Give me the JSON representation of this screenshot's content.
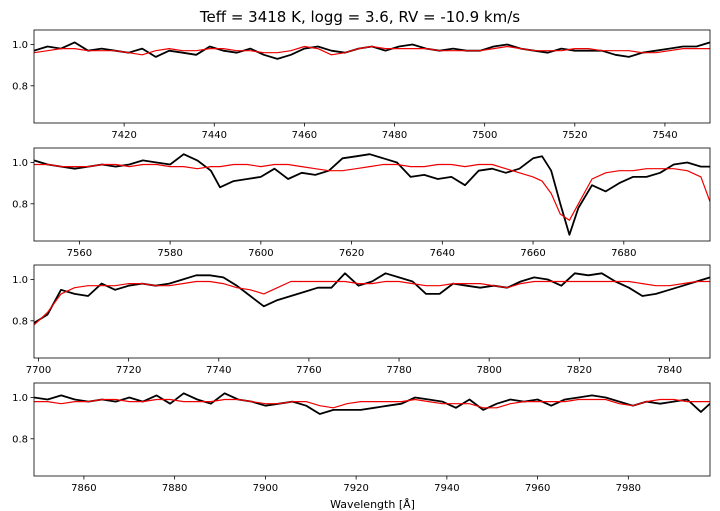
{
  "title": "Teff = 3418 K, logg = 3.6, RV = -10.9 km/s",
  "xlabel": "Wavelength [Å]",
  "colors": {
    "observed": "#000000",
    "model": "#ee0000",
    "axes": "#000000"
  },
  "chart_data": [
    {
      "type": "line",
      "xlim": [
        7400,
        7550
      ],
      "ylim": [
        0.62,
        1.07
      ],
      "xticks": [
        "7420",
        "7440",
        "7460",
        "7480",
        "7500",
        "7520",
        "7540"
      ],
      "yticks": [
        "0.8",
        "1.0"
      ],
      "series": [
        {
          "role": "observed",
          "x": [
            7400,
            7403,
            7406,
            7409,
            7412,
            7415,
            7418,
            7421,
            7424,
            7427,
            7430,
            7433,
            7436,
            7439,
            7442,
            7445,
            7448,
            7451,
            7454,
            7457,
            7460,
            7463,
            7466,
            7469,
            7472,
            7475,
            7478,
            7481,
            7484,
            7487,
            7490,
            7493,
            7496,
            7499,
            7502,
            7505,
            7508,
            7511,
            7514,
            7517,
            7520,
            7523,
            7526,
            7529,
            7532,
            7535,
            7538,
            7541,
            7544,
            7547,
            7550
          ],
          "y": [
            0.97,
            0.99,
            0.98,
            1.01,
            0.97,
            0.98,
            0.97,
            0.96,
            0.98,
            0.94,
            0.97,
            0.96,
            0.95,
            0.99,
            0.97,
            0.96,
            0.98,
            0.95,
            0.93,
            0.95,
            0.98,
            0.99,
            0.97,
            0.96,
            0.98,
            0.99,
            0.97,
            0.99,
            1.0,
            0.98,
            0.97,
            0.98,
            0.97,
            0.97,
            0.99,
            1.0,
            0.98,
            0.97,
            0.96,
            0.98,
            0.97,
            0.97,
            0.97,
            0.95,
            0.94,
            0.96,
            0.97,
            0.98,
            0.99,
            0.99,
            1.01
          ]
        },
        {
          "role": "model",
          "x": [
            7400,
            7403,
            7406,
            7409,
            7412,
            7415,
            7418,
            7421,
            7424,
            7427,
            7430,
            7433,
            7436,
            7439,
            7442,
            7445,
            7448,
            7451,
            7454,
            7457,
            7460,
            7463,
            7466,
            7469,
            7472,
            7475,
            7478,
            7481,
            7484,
            7487,
            7490,
            7493,
            7496,
            7499,
            7502,
            7505,
            7508,
            7511,
            7514,
            7517,
            7520,
            7523,
            7526,
            7529,
            7532,
            7535,
            7538,
            7541,
            7544,
            7547,
            7550
          ],
          "y": [
            0.96,
            0.97,
            0.98,
            0.98,
            0.97,
            0.97,
            0.97,
            0.96,
            0.95,
            0.97,
            0.98,
            0.97,
            0.97,
            0.98,
            0.98,
            0.97,
            0.97,
            0.96,
            0.96,
            0.97,
            0.99,
            0.98,
            0.95,
            0.96,
            0.98,
            0.99,
            0.98,
            0.98,
            0.98,
            0.98,
            0.97,
            0.97,
            0.97,
            0.97,
            0.98,
            0.99,
            0.98,
            0.97,
            0.97,
            0.97,
            0.98,
            0.98,
            0.97,
            0.97,
            0.97,
            0.96,
            0.96,
            0.97,
            0.98,
            0.98,
            0.98
          ]
        }
      ]
    },
    {
      "type": "line",
      "xlim": [
        7550,
        7699
      ],
      "ylim": [
        0.62,
        1.07
      ],
      "xticks": [
        "7560",
        "7580",
        "7600",
        "7620",
        "7640",
        "7660",
        "7680"
      ],
      "yticks": [
        "0.8",
        "1.0"
      ],
      "series": [
        {
          "role": "observed",
          "x": [
            7550,
            7553,
            7556,
            7559,
            7562,
            7565,
            7568,
            7571,
            7574,
            7577,
            7580,
            7583,
            7586,
            7589,
            7591,
            7594,
            7597,
            7600,
            7603,
            7606,
            7609,
            7612,
            7615,
            7618,
            7621,
            7624,
            7627,
            7630,
            7633,
            7636,
            7639,
            7642,
            7645,
            7648,
            7651,
            7654,
            7657,
            7660,
            7662,
            7664,
            7666,
            7668,
            7670,
            7673,
            7676,
            7679,
            7682,
            7685,
            7688,
            7691,
            7694,
            7697,
            7699
          ],
          "y": [
            1.01,
            0.99,
            0.98,
            0.97,
            0.98,
            0.99,
            0.98,
            0.99,
            1.01,
            1.0,
            0.99,
            1.04,
            1.01,
            0.96,
            0.88,
            0.91,
            0.92,
            0.93,
            0.97,
            0.92,
            0.95,
            0.94,
            0.96,
            1.02,
            1.03,
            1.04,
            1.02,
            1.0,
            0.93,
            0.94,
            0.92,
            0.93,
            0.89,
            0.96,
            0.97,
            0.95,
            0.97,
            1.02,
            1.03,
            0.96,
            0.8,
            0.65,
            0.78,
            0.89,
            0.86,
            0.9,
            0.93,
            0.93,
            0.95,
            0.99,
            1.0,
            0.98,
            0.98
          ]
        },
        {
          "role": "model",
          "x": [
            7550,
            7553,
            7556,
            7559,
            7562,
            7565,
            7568,
            7571,
            7574,
            7577,
            7580,
            7583,
            7586,
            7589,
            7591,
            7594,
            7597,
            7600,
            7603,
            7606,
            7609,
            7612,
            7615,
            7618,
            7621,
            7624,
            7627,
            7630,
            7633,
            7636,
            7639,
            7642,
            7645,
            7648,
            7651,
            7654,
            7657,
            7660,
            7662,
            7664,
            7666,
            7668,
            7670,
            7673,
            7676,
            7679,
            7682,
            7685,
            7688,
            7691,
            7694,
            7697,
            7699
          ],
          "y": [
            0.99,
            0.99,
            0.98,
            0.98,
            0.98,
            0.99,
            0.99,
            0.98,
            0.99,
            0.99,
            0.98,
            0.98,
            0.97,
            0.98,
            0.98,
            0.99,
            0.99,
            0.98,
            0.99,
            0.99,
            0.98,
            0.97,
            0.96,
            0.96,
            0.97,
            0.98,
            0.99,
            0.99,
            0.98,
            0.98,
            0.99,
            0.99,
            0.98,
            0.99,
            0.99,
            0.97,
            0.95,
            0.93,
            0.91,
            0.85,
            0.75,
            0.72,
            0.8,
            0.92,
            0.95,
            0.96,
            0.96,
            0.97,
            0.97,
            0.97,
            0.96,
            0.93,
            0.81
          ]
        }
      ]
    },
    {
      "type": "line",
      "xlim": [
        7699,
        7849
      ],
      "ylim": [
        0.62,
        1.07
      ],
      "xticks": [
        "7700",
        "7720",
        "7740",
        "7760",
        "7780",
        "7800",
        "7820",
        "7840"
      ],
      "yticks": [
        "0.8",
        "1.0"
      ],
      "series": [
        {
          "role": "observed",
          "x": [
            7699,
            7702,
            7705,
            7708,
            7711,
            7714,
            7717,
            7720,
            7723,
            7726,
            7729,
            7732,
            7735,
            7738,
            7741,
            7744,
            7747,
            7750,
            7753,
            7756,
            7759,
            7762,
            7765,
            7768,
            7771,
            7774,
            7777,
            7780,
            7783,
            7786,
            7789,
            7792,
            7795,
            7798,
            7801,
            7804,
            7807,
            7810,
            7813,
            7816,
            7819,
            7822,
            7825,
            7828,
            7831,
            7834,
            7837,
            7840,
            7843,
            7846,
            7849
          ],
          "y": [
            0.79,
            0.83,
            0.95,
            0.93,
            0.92,
            0.98,
            0.95,
            0.97,
            0.98,
            0.97,
            0.98,
            1.0,
            1.02,
            1.02,
            1.01,
            0.97,
            0.92,
            0.87,
            0.9,
            0.92,
            0.94,
            0.96,
            0.96,
            1.03,
            0.97,
            0.99,
            1.03,
            1.01,
            0.99,
            0.93,
            0.93,
            0.98,
            0.97,
            0.96,
            0.97,
            0.96,
            0.99,
            1.01,
            1.0,
            0.97,
            1.03,
            1.02,
            1.03,
            0.99,
            0.96,
            0.92,
            0.93,
            0.95,
            0.97,
            0.99,
            1.01
          ]
        },
        {
          "role": "model",
          "x": [
            7699,
            7702,
            7705,
            7708,
            7711,
            7714,
            7717,
            7720,
            7723,
            7726,
            7729,
            7732,
            7735,
            7738,
            7741,
            7744,
            7747,
            7750,
            7753,
            7756,
            7759,
            7762,
            7765,
            7768,
            7771,
            7774,
            7777,
            7780,
            7783,
            7786,
            7789,
            7792,
            7795,
            7798,
            7801,
            7804,
            7807,
            7810,
            7813,
            7816,
            7819,
            7822,
            7825,
            7828,
            7831,
            7834,
            7837,
            7840,
            7843,
            7846,
            7849
          ],
          "y": [
            0.78,
            0.84,
            0.93,
            0.96,
            0.97,
            0.97,
            0.97,
            0.98,
            0.98,
            0.97,
            0.97,
            0.98,
            0.99,
            0.99,
            0.98,
            0.96,
            0.95,
            0.93,
            0.96,
            0.99,
            0.99,
            0.99,
            0.99,
            0.99,
            0.98,
            0.98,
            0.99,
            0.99,
            0.98,
            0.97,
            0.97,
            0.98,
            0.98,
            0.98,
            0.97,
            0.96,
            0.98,
            0.99,
            0.99,
            0.99,
            0.99,
            0.99,
            0.99,
            0.99,
            0.99,
            0.98,
            0.97,
            0.97,
            0.98,
            0.99,
            0.99
          ]
        }
      ]
    },
    {
      "type": "line",
      "xlim": [
        7849,
        7998
      ],
      "ylim": [
        0.62,
        1.07
      ],
      "xticks": [
        "7860",
        "7880",
        "7900",
        "7920",
        "7940",
        "7960",
        "7980"
      ],
      "yticks": [
        "0.8",
        "1.0"
      ],
      "series": [
        {
          "role": "observed",
          "x": [
            7849,
            7852,
            7855,
            7858,
            7861,
            7864,
            7867,
            7870,
            7873,
            7876,
            7879,
            7882,
            7885,
            7888,
            7891,
            7894,
            7897,
            7900,
            7903,
            7906,
            7909,
            7912,
            7915,
            7918,
            7921,
            7924,
            7927,
            7930,
            7933,
            7936,
            7939,
            7942,
            7945,
            7948,
            7951,
            7954,
            7957,
            7960,
            7963,
            7966,
            7969,
            7972,
            7975,
            7978,
            7981,
            7984,
            7987,
            7990,
            7993,
            7996,
            7998
          ],
          "y": [
            1.0,
            0.99,
            1.01,
            0.99,
            0.98,
            0.99,
            0.98,
            1.0,
            0.98,
            1.01,
            0.97,
            1.02,
            0.99,
            0.97,
            1.02,
            0.99,
            0.98,
            0.96,
            0.97,
            0.98,
            0.96,
            0.92,
            0.94,
            0.94,
            0.94,
            0.95,
            0.96,
            0.97,
            1.0,
            0.99,
            0.98,
            0.95,
            0.99,
            0.94,
            0.97,
            0.99,
            0.98,
            0.99,
            0.96,
            0.99,
            1.0,
            1.01,
            1.0,
            0.98,
            0.96,
            0.98,
            0.97,
            0.98,
            0.99,
            0.93,
            0.97
          ]
        },
        {
          "role": "model",
          "x": [
            7849,
            7852,
            7855,
            7858,
            7861,
            7864,
            7867,
            7870,
            7873,
            7876,
            7879,
            7882,
            7885,
            7888,
            7891,
            7894,
            7897,
            7900,
            7903,
            7906,
            7909,
            7912,
            7915,
            7918,
            7921,
            7924,
            7927,
            7930,
            7933,
            7936,
            7939,
            7942,
            7945,
            7948,
            7951,
            7954,
            7957,
            7960,
            7963,
            7966,
            7969,
            7972,
            7975,
            7978,
            7981,
            7984,
            7987,
            7990,
            7993,
            7996,
            7998
          ],
          "y": [
            0.98,
            0.98,
            0.97,
            0.98,
            0.98,
            0.99,
            0.99,
            0.98,
            0.98,
            0.99,
            0.99,
            0.98,
            0.98,
            0.98,
            0.99,
            0.99,
            0.98,
            0.97,
            0.97,
            0.98,
            0.98,
            0.96,
            0.95,
            0.97,
            0.98,
            0.98,
            0.98,
            0.98,
            0.99,
            0.98,
            0.97,
            0.97,
            0.97,
            0.95,
            0.95,
            0.97,
            0.98,
            0.98,
            0.98,
            0.98,
            0.99,
            0.99,
            0.99,
            0.97,
            0.96,
            0.98,
            0.99,
            0.99,
            0.98,
            0.98,
            0.98
          ]
        }
      ]
    }
  ]
}
